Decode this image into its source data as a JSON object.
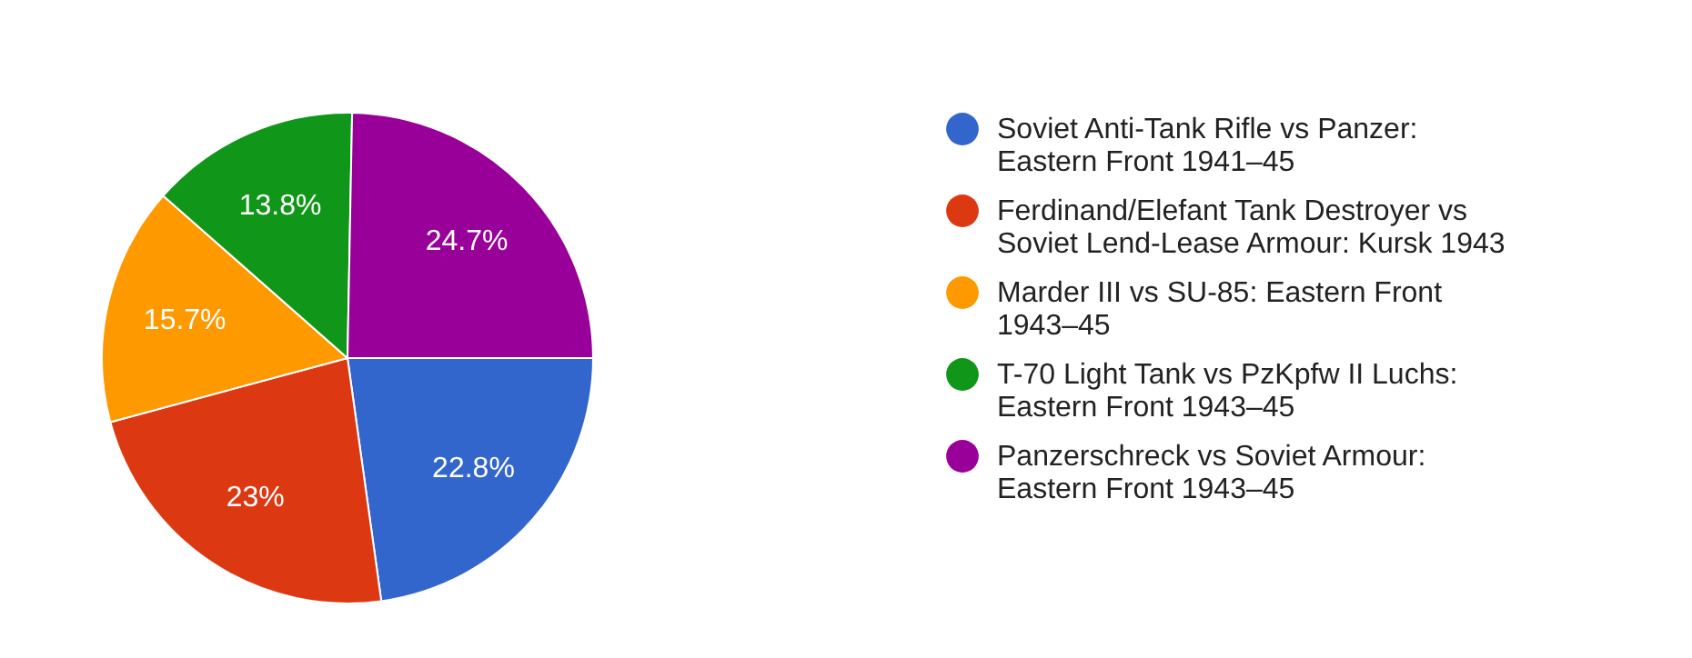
{
  "chart_data": {
    "type": "pie",
    "categories": [
      "Soviet Anti-Tank Rifle vs Panzer: Eastern Front 1941–45",
      "Ferdinand/Elefant Tank Destroyer vs Soviet Lend-Lease Armour: Kursk 1943",
      "Marder III vs SU-85: Eastern Front 1943–45",
      "T-70 Light Tank vs PzKpfw II Luchs: Eastern Front 1943–45",
      "Panzerschreck vs Soviet Armour: Eastern Front 1943–45"
    ],
    "values": [
      22.8,
      23,
      15.7,
      13.8,
      24.7
    ],
    "value_labels": [
      "22.8%",
      "23%",
      "15.7%",
      "13.8%",
      "24.7%"
    ],
    "colors": [
      "#3366cc",
      "#dc3912",
      "#ff9900",
      "#109618",
      "#990099"
    ],
    "legend": "right"
  }
}
